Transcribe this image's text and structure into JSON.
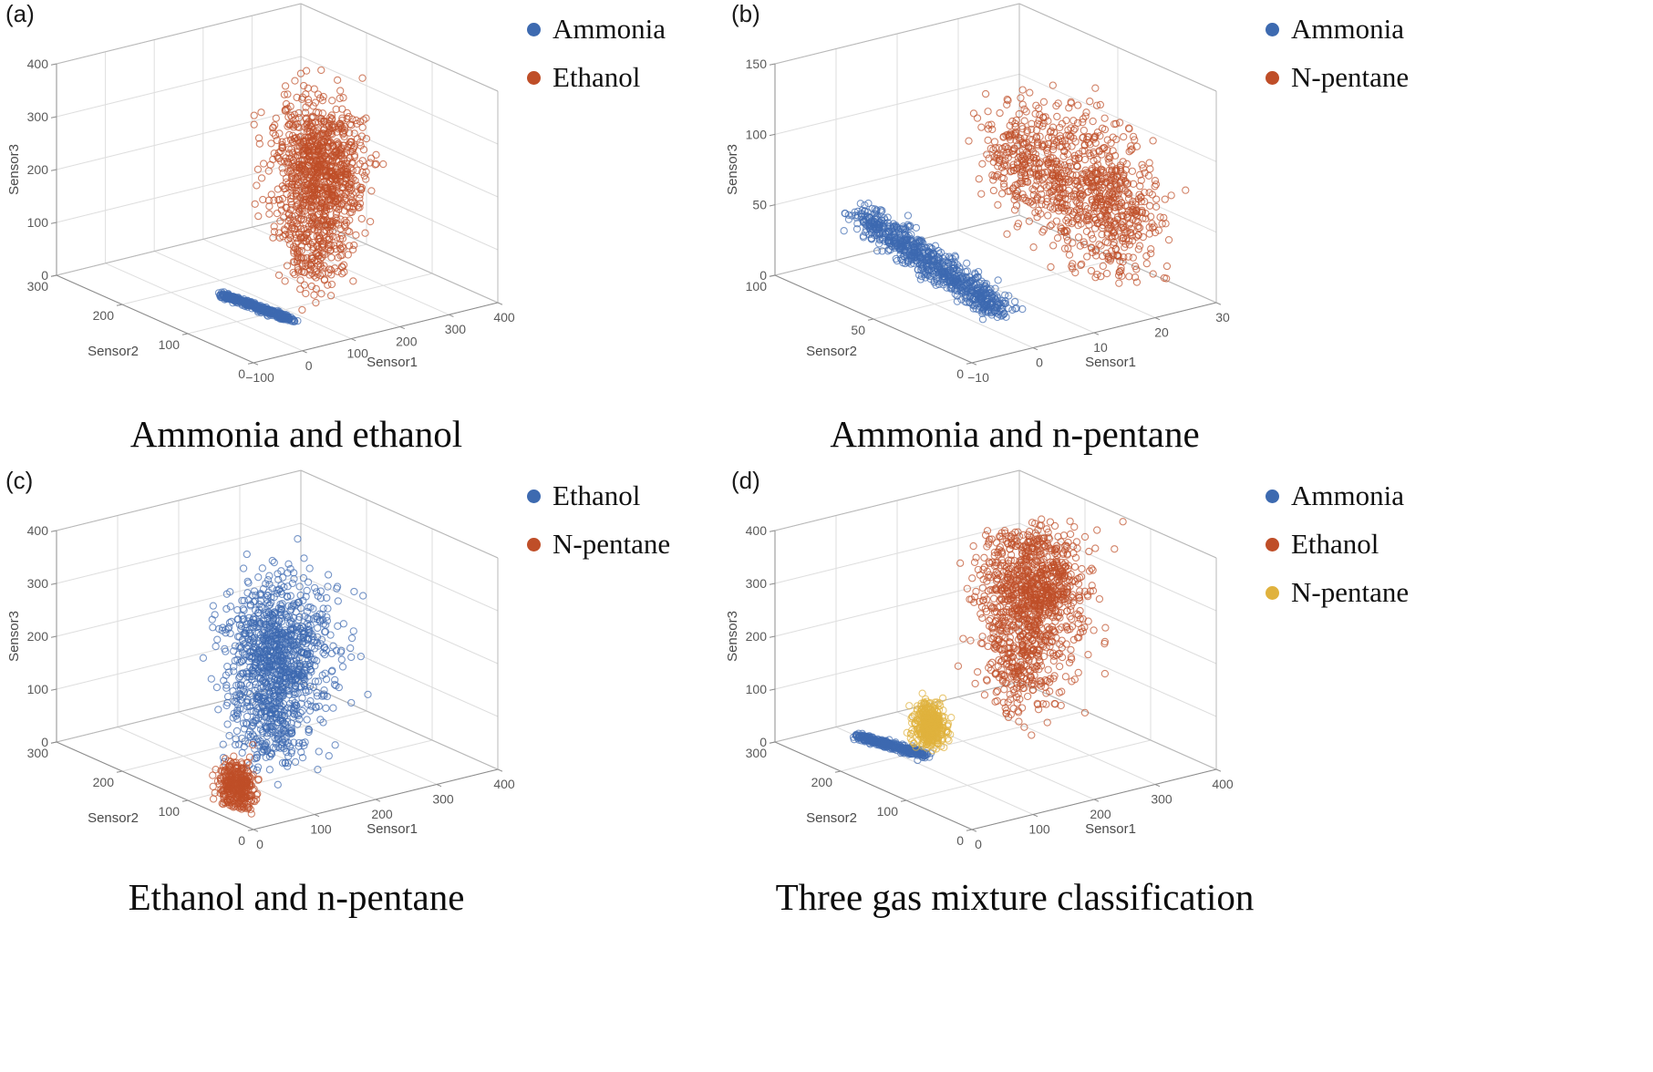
{
  "page": {
    "background": "#ffffff"
  },
  "colors": {
    "blue": "#3d6ab0",
    "orange": "#bf4e28",
    "yellow": "#e0b23d"
  },
  "chart_data": [
    {
      "id": "a",
      "type": "scatter3d",
      "corner_label": "(a)",
      "caption": "Ammonia and ethanol",
      "legend_position": "top-right",
      "grid": true,
      "axes": {
        "x": {
          "label": "Sensor1",
          "min": -100,
          "max": 400,
          "tick_values": [
            -100,
            0,
            100,
            200,
            300,
            400
          ],
          "tick_labels": [
            "−100",
            "0",
            "100",
            "200",
            "300",
            "400"
          ]
        },
        "y": {
          "label": "Sensor2",
          "min": 0,
          "max": 300,
          "tick_values": [
            0,
            100,
            200,
            300
          ],
          "tick_labels": [
            "0",
            "100",
            "200",
            "300"
          ]
        },
        "z": {
          "label": "Sensor3",
          "min": 0,
          "max": 400,
          "tick_values": [
            0,
            100,
            200,
            300,
            400
          ],
          "tick_labels": [
            "0",
            "100",
            "200",
            "300",
            "400"
          ]
        }
      },
      "series": [
        {
          "name": "Ammonia",
          "color": "#3d6ab0",
          "marker": "open-circle",
          "clusters": [
            {
              "n": 420,
              "center": [
                65,
                118,
                3
              ],
              "slope": [
                9,
                -46,
                0
              ],
              "spread": [
                4,
                5,
                1.5
              ]
            }
          ]
        },
        {
          "name": "Ethanol",
          "color": "#bf4e28",
          "marker": "open-circle",
          "clusters": [
            {
              "n": 900,
              "center": [
                200,
                122,
                232
              ],
              "slope": [
                6,
                4,
                30
              ],
              "spread": [
                33,
                24,
                60
              ]
            },
            {
              "n": 230,
              "center": [
                172,
                110,
                100
              ],
              "slope": [
                0,
                0,
                20
              ],
              "spread": [
                25,
                19,
                40
              ]
            }
          ]
        }
      ]
    },
    {
      "id": "b",
      "type": "scatter3d",
      "corner_label": "(b)",
      "caption": "Ammonia and n-pentane",
      "legend_position": "top-right",
      "grid": true,
      "axes": {
        "x": {
          "label": "Sensor1",
          "min": -10,
          "max": 30,
          "tick_values": [
            -10,
            0,
            10,
            20,
            30
          ],
          "tick_labels": [
            "−10",
            "0",
            "10",
            "20",
            "30"
          ]
        },
        "y": {
          "label": "Sensor2",
          "min": 0,
          "max": 100,
          "tick_values": [
            0,
            50,
            100
          ],
          "tick_labels": [
            "0",
            "50",
            "100"
          ]
        },
        "z": {
          "label": "Sensor3",
          "min": 0,
          "max": 150,
          "tick_values": [
            0,
            50,
            100,
            150
          ],
          "tick_labels": [
            "0",
            "50",
            "100",
            "150"
          ]
        }
      },
      "series": [
        {
          "name": "Ammonia",
          "color": "#3d6ab0",
          "marker": "open-circle",
          "clusters": [
            {
              "n": 800,
              "center": [
                2,
                58,
                22
              ],
              "slope": [
                3,
                -26,
                -22
              ],
              "spread": [
                1.3,
                3.5,
                4
              ]
            }
          ]
        },
        {
          "name": "N-pentane",
          "color": "#bf4e28",
          "marker": "open-circle",
          "clusters": [
            {
              "n": 380,
              "center": [
                22,
                45,
                68
              ],
              "slope": [
                1,
                -4,
                18
              ],
              "spread": [
                3,
                8,
                22
              ]
            },
            {
              "n": 260,
              "center": [
                17,
                57,
                84
              ],
              "slope": [
                1,
                3,
                14
              ],
              "spread": [
                2.5,
                6,
                16
              ]
            },
            {
              "n": 320,
              "center": [
                25,
                35,
                45
              ],
              "slope": [
                1,
                -3,
                14
              ],
              "spread": [
                2.5,
                8,
                20
              ]
            }
          ]
        }
      ]
    },
    {
      "id": "c",
      "type": "scatter3d",
      "corner_label": "(c)",
      "caption": "Ethanol and n-pentane",
      "legend_position": "top-right",
      "grid": true,
      "axes": {
        "x": {
          "label": "Sensor1",
          "min": 0,
          "max": 400,
          "tick_values": [
            0,
            100,
            200,
            300,
            400
          ],
          "tick_labels": [
            "0",
            "100",
            "200",
            "300",
            "400"
          ]
        },
        "y": {
          "label": "Sensor2",
          "min": 0,
          "max": 300,
          "tick_values": [
            0,
            100,
            200,
            300
          ],
          "tick_labels": [
            "0",
            "100",
            "200",
            "300"
          ]
        },
        "z": {
          "label": "Sensor3",
          "min": 0,
          "max": 400,
          "tick_values": [
            0,
            100,
            200,
            300,
            400
          ],
          "tick_labels": [
            "0",
            "100",
            "200",
            "300",
            "400"
          ]
        }
      },
      "series": [
        {
          "name": "Ethanol",
          "color": "#3d6ab0",
          "marker": "open-circle",
          "clusters": [
            {
              "n": 900,
              "center": [
                182,
                130,
                218
              ],
              "slope": [
                6,
                4,
                30
              ],
              "spread": [
                33,
                24,
                60
              ]
            },
            {
              "n": 260,
              "center": [
                152,
                115,
                92
              ],
              "slope": [
                0,
                0,
                22
              ],
              "spread": [
                24,
                19,
                40
              ]
            }
          ]
        },
        {
          "name": "N-pentane",
          "color": "#bf4e28",
          "marker": "open-circle",
          "clusters": [
            {
              "n": 360,
              "center": [
                40,
                62,
                34
              ],
              "slope": [
                3,
                -13,
                6
              ],
              "spread": [
                6,
                8,
                22
              ]
            }
          ]
        }
      ]
    },
    {
      "id": "d",
      "type": "scatter3d",
      "corner_label": "(d)",
      "caption": "Three gas mixture classification",
      "legend_position": "top-right",
      "grid": true,
      "axes": {
        "x": {
          "label": "Sensor1",
          "min": 0,
          "max": 400,
          "tick_values": [
            0,
            100,
            200,
            300,
            400
          ],
          "tick_labels": [
            "0",
            "100",
            "200",
            "300",
            "400"
          ]
        },
        "y": {
          "label": "Sensor2",
          "min": 0,
          "max": 300,
          "tick_values": [
            0,
            100,
            200,
            300
          ],
          "tick_labels": [
            "0",
            "100",
            "200",
            "300"
          ]
        },
        "z": {
          "label": "Sensor3",
          "min": 0,
          "max": 400,
          "tick_values": [
            0,
            100,
            200,
            300,
            400
          ],
          "tick_labels": [
            "0",
            "100",
            "200",
            "300",
            "400"
          ]
        }
      },
      "series": [
        {
          "name": "Ammonia",
          "color": "#3d6ab0",
          "marker": "open-circle",
          "clusters": [
            {
              "n": 360,
              "center": [
                110,
                224,
                4
              ],
              "slope": [
                12,
                -38,
                0
              ],
              "spread": [
                5,
                5,
                1.5
              ]
            }
          ]
        },
        {
          "name": "Ethanol",
          "color": "#bf4e28",
          "marker": "open-circle",
          "clusters": [
            {
              "n": 900,
              "center": [
                262,
                150,
                298
              ],
              "slope": [
                5,
                4,
                28
              ],
              "spread": [
                32,
                26,
                56
              ]
            },
            {
              "n": 260,
              "center": [
                226,
                140,
                172
              ],
              "slope": [
                0,
                0,
                22
              ],
              "spread": [
                25,
                20,
                46
              ]
            }
          ]
        },
        {
          "name": "N-pentane",
          "color": "#e0b23d",
          "marker": "open-circle",
          "clusters": [
            {
              "n": 420,
              "center": [
                150,
                204,
                42
              ],
              "slope": [
                3,
                -10,
                8
              ],
              "spread": [
                6,
                7,
                20
              ]
            }
          ]
        }
      ]
    }
  ]
}
